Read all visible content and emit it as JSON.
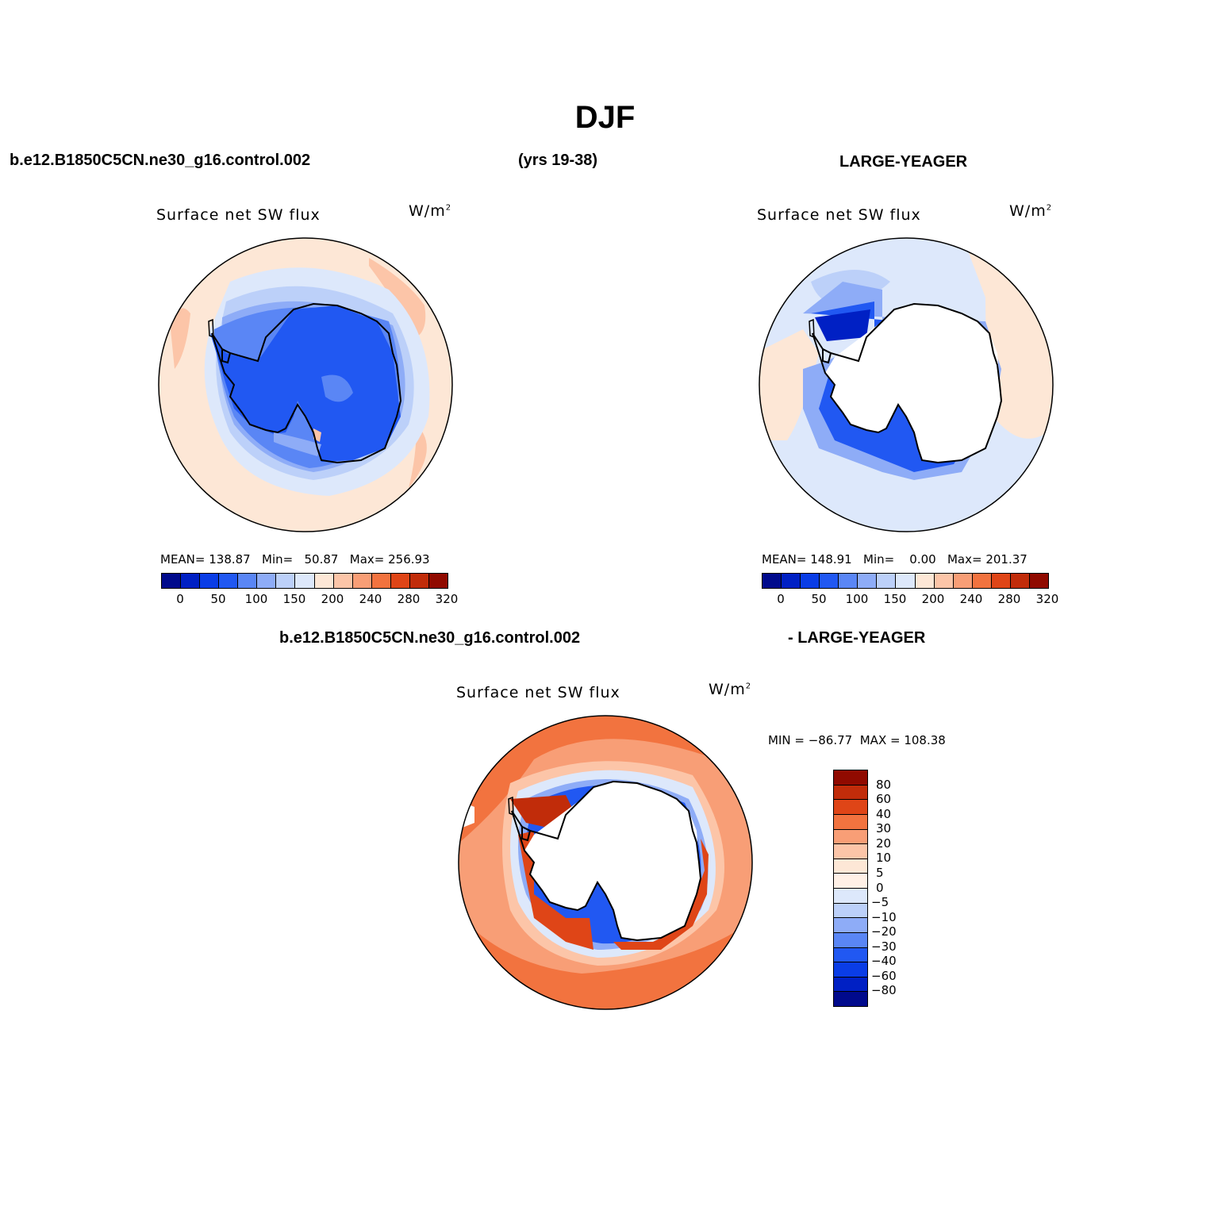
{
  "header": {
    "title": "DJF",
    "case_name": "b.e12.B1850C5CN.ne30_g16.control.002",
    "years": "(yrs 19-38)",
    "obs_name": "LARGE-YEAGER"
  },
  "panels": [
    {
      "variable": "Surface net SW flux",
      "units": "W/m",
      "units_sup": "2",
      "stats": "MEAN= 138.87   Min=   50.87   Max= 256.93",
      "colorbar_ticks": [
        "0",
        "50",
        "100",
        "150",
        "200",
        "240",
        "280",
        "320"
      ]
    },
    {
      "variable": "Surface net SW flux",
      "units": "W/m",
      "units_sup": "2",
      "stats": "MEAN= 148.91   Min=    0.00   Max= 201.37",
      "colorbar_ticks": [
        "0",
        "50",
        "100",
        "150",
        "200",
        "240",
        "280",
        "320"
      ]
    }
  ],
  "diff": {
    "title_left": "b.e12.B1850C5CN.ne30_g16.control.002",
    "title_right": "- LARGE-YEAGER",
    "variable": "Surface net SW flux",
    "units": "W/m",
    "units_sup": "2",
    "minmax": "MIN = −86.77  MAX = 108.38",
    "colorbar_labels": [
      "80",
      "60",
      "40",
      "30",
      "20",
      "10",
      "5",
      "0",
      "−5",
      "−10",
      "−20",
      "−30",
      "−40",
      "−60",
      "−80"
    ]
  },
  "colors": {
    "sequential": [
      "#000a8c",
      "#0020c4",
      "#0a3de6",
      "#2158f2",
      "#5a86f5",
      "#8eacf7",
      "#bcd0f9",
      "#dde8fb",
      "#fde7d6",
      "#fcc5a8",
      "#f89e76",
      "#f2733f",
      "#df4517",
      "#c12c0a",
      "#900a00"
    ],
    "diverging": [
      "#900a00",
      "#c12c0a",
      "#df4517",
      "#f2733f",
      "#f89e76",
      "#fcc5a8",
      "#fde7d6",
      "#fff0e6",
      "#dde8fb",
      "#bcd0f9",
      "#8eacf7",
      "#5a86f5",
      "#2158f2",
      "#0a3de6",
      "#0020c4",
      "#000a8c"
    ],
    "land": "#ffffff",
    "coast": "#000000"
  }
}
